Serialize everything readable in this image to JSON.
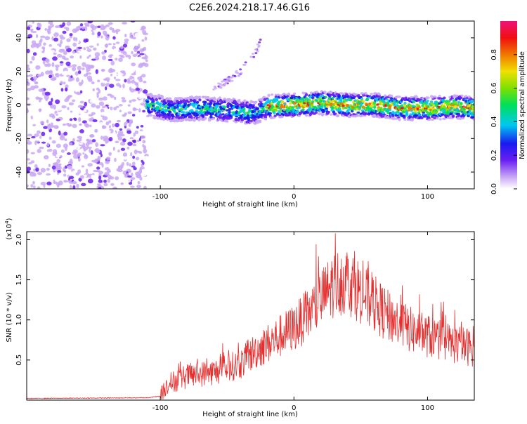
{
  "title": "C2E6.2024.218.17.46.G16",
  "chart_data": [
    {
      "type": "heatmap",
      "xlabel": "Height of straight line (km)",
      "ylabel": "Frequency (Hz)",
      "xlim": [
        -200,
        135
      ],
      "ylim": [
        -50,
        50
      ],
      "x_ticks": [
        -100,
        0,
        100
      ],
      "y_ticks": [
        -40,
        -20,
        0,
        20,
        40
      ],
      "colorbar": {
        "label": "Normalized spectral amplitude",
        "range": [
          0,
          1
        ],
        "ticks": [
          0.0,
          0.2,
          0.4,
          0.6,
          0.8
        ]
      },
      "description_regions": {
        "noise_region_x": [
          -200,
          -110
        ],
        "signal_center_freq_hz": [
          [
            -110,
            0
          ],
          [
            -90,
            -3
          ],
          [
            -70,
            -2
          ],
          [
            -50,
            -3
          ],
          [
            -40,
            -4
          ],
          [
            -30,
            -5
          ],
          [
            -20,
            -1
          ],
          [
            0,
            0
          ],
          [
            20,
            1
          ],
          [
            40,
            0
          ],
          [
            60,
            0
          ],
          [
            80,
            -2
          ],
          [
            100,
            -2
          ],
          [
            120,
            -1
          ],
          [
            135,
            -2
          ]
        ],
        "side_track": [
          [
            -60,
            10
          ],
          [
            -50,
            14
          ],
          [
            -40,
            20
          ],
          [
            -30,
            30
          ],
          [
            -25,
            37
          ]
        ]
      }
    },
    {
      "type": "line",
      "xlabel": "Height of straight line (km)",
      "ylabel": "SNR (10 * v/v)",
      "y_scale_label": "(x10",
      "y_scale_exp": "4",
      "xlim": [
        -200,
        135
      ],
      "ylim": [
        0,
        2.1
      ],
      "x_ticks": [
        -100,
        0,
        100
      ],
      "y_ticks": [
        0.5,
        1.0,
        1.5,
        2.0
      ],
      "series": [
        {
          "color": "#e53030",
          "envelope": [
            [
              -200,
              0.02
            ],
            [
              -110,
              0.03
            ],
            [
              -100,
              0.05
            ],
            [
              -95,
              0.2
            ],
            [
              -80,
              0.3
            ],
            [
              -60,
              0.35
            ],
            [
              -40,
              0.45
            ],
            [
              -30,
              0.6
            ],
            [
              -20,
              0.7
            ],
            [
              -10,
              0.8
            ],
            [
              0,
              0.9
            ],
            [
              10,
              1.05
            ],
            [
              20,
              1.25
            ],
            [
              30,
              1.45
            ],
            [
              40,
              1.5
            ],
            [
              50,
              1.35
            ],
            [
              60,
              1.2
            ],
            [
              70,
              1.05
            ],
            [
              80,
              0.95
            ],
            [
              90,
              0.85
            ],
            [
              100,
              0.8
            ],
            [
              110,
              0.75
            ],
            [
              120,
              0.7
            ],
            [
              135,
              0.65
            ]
          ],
          "noise_amplitude": 0.35
        }
      ]
    }
  ]
}
